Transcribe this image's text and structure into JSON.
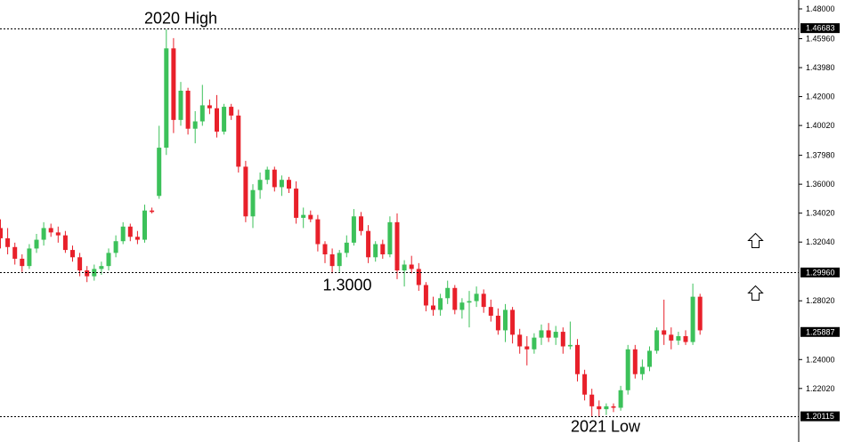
{
  "chart_data": {
    "type": "candlestick",
    "ylim": [
      1.196,
      1.482
    ],
    "yticks": [
      "1.48000",
      "1.45960",
      "1.43980",
      "1.42000",
      "1.40020",
      "1.37980",
      "1.36000",
      "1.34020",
      "1.32040",
      "1.28020",
      "1.24000",
      "1.22020"
    ],
    "price_badges": [
      "1.46683",
      "1.29960",
      "1.25887",
      "1.20115"
    ],
    "levels": [
      {
        "value": 1.46683,
        "label": "2020 High"
      },
      {
        "value": 1.2996,
        "label": "1.3000"
      },
      {
        "value": 1.20115,
        "label": "2021 Low"
      }
    ],
    "colors": {
      "up": "#3cc15a",
      "down": "#e8202a"
    },
    "candles": [
      [
        1.33,
        1.336,
        1.316,
        1.323
      ],
      [
        1.323,
        1.33,
        1.312,
        1.317
      ],
      [
        1.317,
        1.32,
        1.305,
        1.309
      ],
      [
        1.309,
        1.312,
        1.3,
        1.304
      ],
      [
        1.304,
        1.319,
        1.302,
        1.316
      ],
      [
        1.316,
        1.326,
        1.313,
        1.322
      ],
      [
        1.322,
        1.334,
        1.318,
        1.33
      ],
      [
        1.33,
        1.333,
        1.324,
        1.327
      ],
      [
        1.327,
        1.331,
        1.32,
        1.325
      ],
      [
        1.325,
        1.328,
        1.313,
        1.315
      ],
      [
        1.315,
        1.318,
        1.307,
        1.31
      ],
      [
        1.31,
        1.313,
        1.297,
        1.301
      ],
      [
        1.301,
        1.304,
        1.293,
        1.297
      ],
      [
        1.297,
        1.305,
        1.294,
        1.302
      ],
      [
        1.302,
        1.307,
        1.298,
        1.304
      ],
      [
        1.304,
        1.316,
        1.301,
        1.313
      ],
      [
        1.313,
        1.325,
        1.31,
        1.321
      ],
      [
        1.321,
        1.334,
        1.319,
        1.331
      ],
      [
        1.331,
        1.333,
        1.321,
        1.324
      ],
      [
        1.324,
        1.328,
        1.319,
        1.322
      ],
      [
        1.322,
        1.346,
        1.32,
        1.342
      ],
      [
        1.342,
        1.344,
        1.34,
        1.341
      ],
      [
        1.352,
        1.4,
        1.35,
        1.385
      ],
      [
        1.385,
        1.466,
        1.38,
        1.453
      ],
      [
        1.453,
        1.46,
        1.395,
        1.404
      ],
      [
        1.404,
        1.43,
        1.4,
        1.424
      ],
      [
        1.424,
        1.426,
        1.394,
        1.398
      ],
      [
        1.398,
        1.41,
        1.388,
        1.403
      ],
      [
        1.403,
        1.428,
        1.4,
        1.414
      ],
      [
        1.414,
        1.418,
        1.408,
        1.412
      ],
      [
        1.412,
        1.421,
        1.392,
        1.396
      ],
      [
        1.396,
        1.415,
        1.394,
        1.413
      ],
      [
        1.413,
        1.415,
        1.404,
        1.407
      ],
      [
        1.407,
        1.411,
        1.368,
        1.372
      ],
      [
        1.372,
        1.376,
        1.334,
        1.338
      ],
      [
        1.338,
        1.36,
        1.33,
        1.356
      ],
      [
        1.356,
        1.368,
        1.35,
        1.363
      ],
      [
        1.363,
        1.372,
        1.36,
        1.37
      ],
      [
        1.37,
        1.372,
        1.355,
        1.358
      ],
      [
        1.358,
        1.366,
        1.352,
        1.363
      ],
      [
        1.363,
        1.365,
        1.354,
        1.357
      ],
      [
        1.357,
        1.362,
        1.333,
        1.337
      ],
      [
        1.337,
        1.344,
        1.33,
        1.339
      ],
      [
        1.339,
        1.342,
        1.334,
        1.336
      ],
      [
        1.336,
        1.339,
        1.314,
        1.319
      ],
      [
        1.319,
        1.321,
        1.306,
        1.312
      ],
      [
        1.312,
        1.316,
        1.299,
        1.304
      ],
      [
        1.304,
        1.315,
        1.3,
        1.313
      ],
      [
        1.313,
        1.325,
        1.31,
        1.32
      ],
      [
        1.32,
        1.343,
        1.318,
        1.338
      ],
      [
        1.338,
        1.341,
        1.325,
        1.328
      ],
      [
        1.328,
        1.332,
        1.306,
        1.31
      ],
      [
        1.31,
        1.321,
        1.307,
        1.319
      ],
      [
        1.319,
        1.322,
        1.309,
        1.312
      ],
      [
        1.312,
        1.338,
        1.31,
        1.334
      ],
      [
        1.334,
        1.34,
        1.295,
        1.301
      ],
      [
        1.301,
        1.308,
        1.29,
        1.305
      ],
      [
        1.305,
        1.311,
        1.299,
        1.302
      ],
      [
        1.302,
        1.306,
        1.287,
        1.291
      ],
      [
        1.291,
        1.293,
        1.273,
        1.277
      ],
      [
        1.277,
        1.283,
        1.27,
        1.274
      ],
      [
        1.274,
        1.285,
        1.27,
        1.282
      ],
      [
        1.282,
        1.294,
        1.278,
        1.289
      ],
      [
        1.289,
        1.291,
        1.271,
        1.274
      ],
      [
        1.274,
        1.282,
        1.268,
        1.279
      ],
      [
        1.279,
        1.287,
        1.262,
        1.28
      ],
      [
        1.28,
        1.29,
        1.276,
        1.285
      ],
      [
        1.285,
        1.288,
        1.272,
        1.276
      ],
      [
        1.276,
        1.281,
        1.266,
        1.27
      ],
      [
        1.27,
        1.275,
        1.257,
        1.26
      ],
      [
        1.26,
        1.278,
        1.252,
        1.274
      ],
      [
        1.274,
        1.276,
        1.251,
        1.257
      ],
      [
        1.257,
        1.261,
        1.244,
        1.249
      ],
      [
        1.249,
        1.256,
        1.236,
        1.247
      ],
      [
        1.247,
        1.258,
        1.244,
        1.255
      ],
      [
        1.255,
        1.264,
        1.25,
        1.26
      ],
      [
        1.26,
        1.265,
        1.252,
        1.255
      ],
      [
        1.255,
        1.263,
        1.25,
        1.259
      ],
      [
        1.259,
        1.262,
        1.244,
        1.249
      ],
      [
        1.249,
        1.266,
        1.247,
        1.25
      ],
      [
        1.25,
        1.254,
        1.225,
        1.23
      ],
      [
        1.23,
        1.233,
        1.212,
        1.216
      ],
      [
        1.216,
        1.22,
        1.201,
        1.208
      ],
      [
        1.208,
        1.212,
        1.201,
        1.206
      ],
      [
        1.206,
        1.21,
        1.202,
        1.208
      ],
      [
        1.208,
        1.21,
        1.204,
        1.207
      ],
      [
        1.207,
        1.222,
        1.205,
        1.219
      ],
      [
        1.219,
        1.25,
        1.216,
        1.247
      ],
      [
        1.247,
        1.25,
        1.227,
        1.23
      ],
      [
        1.23,
        1.24,
        1.226,
        1.235
      ],
      [
        1.235,
        1.249,
        1.232,
        1.246
      ],
      [
        1.246,
        1.262,
        1.244,
        1.26
      ],
      [
        1.26,
        1.281,
        1.25,
        1.257
      ],
      [
        1.257,
        1.262,
        1.247,
        1.253
      ],
      [
        1.253,
        1.259,
        1.25,
        1.256
      ],
      [
        1.256,
        1.26,
        1.25,
        1.252
      ],
      [
        1.252,
        1.292,
        1.25,
        1.283
      ],
      [
        1.283,
        1.285,
        1.257,
        1.26
      ]
    ]
  }
}
